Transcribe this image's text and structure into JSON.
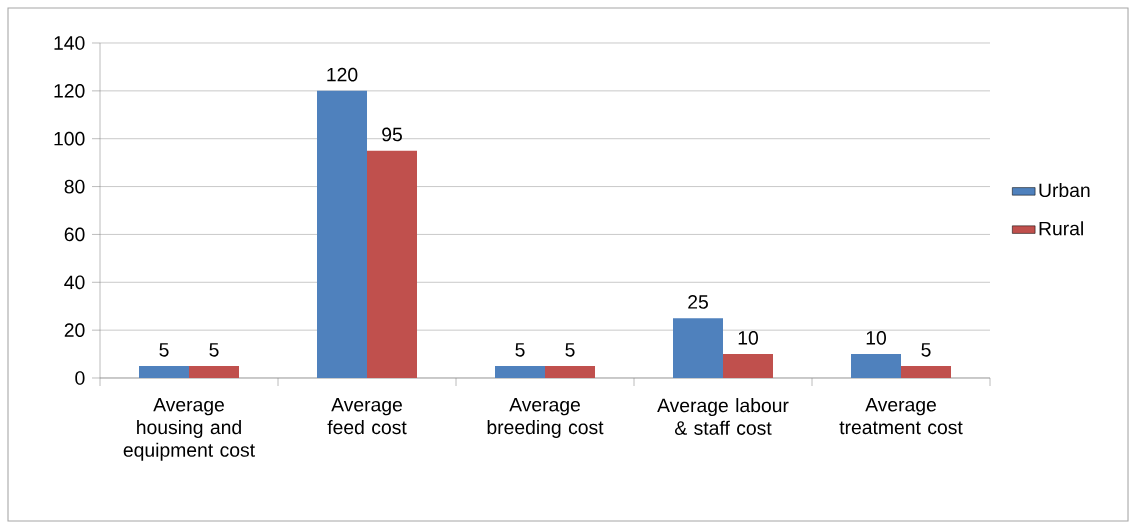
{
  "chart_data": {
    "type": "bar",
    "categories": [
      "Average housing and equipment cost",
      "Average feed cost",
      "Average breeding cost",
      "Average labour & staff cost",
      "Average treatment cost"
    ],
    "series": [
      {
        "name": "Urban",
        "color": "#4f81bd",
        "values": [
          5,
          120,
          5,
          25,
          10
        ]
      },
      {
        "name": "Rural",
        "color": "#c0504d",
        "values": [
          5,
          95,
          5,
          10,
          5
        ]
      }
    ],
    "ylim": [
      0,
      140
    ],
    "yticks": [
      0,
      20,
      40,
      60,
      80,
      100,
      120,
      140
    ],
    "grid": "y",
    "legend": "right",
    "data_labels": true
  }
}
